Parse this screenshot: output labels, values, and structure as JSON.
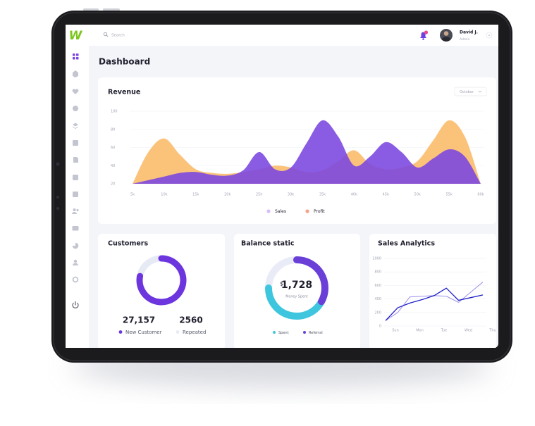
{
  "brand": "W",
  "header": {
    "search": "Search",
    "user_name": "David J.",
    "user_role": "Admin"
  },
  "page_title": "Dashboard",
  "chart_data": [
    {
      "type": "area",
      "title": "Revenue",
      "filter": "October",
      "x": [
        5000,
        7500,
        10000,
        12500,
        15000,
        17500,
        20000,
        22500,
        25000,
        27500,
        30000,
        32500,
        35000,
        37500,
        40000,
        42500,
        45000,
        47500,
        50000,
        52500,
        55000,
        57500,
        60000
      ],
      "xlim": [
        5000,
        60000
      ],
      "xticks": [
        {
          "value": 5000,
          "label": "5k"
        },
        {
          "value": 10000,
          "label": "10k"
        },
        {
          "value": 15000,
          "label": "15k"
        },
        {
          "value": 20000,
          "label": "20k"
        },
        {
          "value": 25000,
          "label": "25k"
        },
        {
          "value": 30000,
          "label": "30k"
        },
        {
          "value": 35000,
          "label": "35k"
        },
        {
          "value": 40000,
          "label": "40k"
        },
        {
          "value": 45000,
          "label": "45k"
        },
        {
          "value": 50000,
          "label": "50k"
        },
        {
          "value": 55000,
          "label": "55k"
        },
        {
          "value": 60000,
          "label": "60k"
        }
      ],
      "ylim": [
        20,
        100
      ],
      "yticks": [
        20,
        40,
        60,
        80,
        100
      ],
      "grid": true,
      "series": [
        {
          "name": "Sales",
          "color": "#7a45e0",
          "legend_color": "#d9bdf7",
          "values": [
            20,
            24,
            28,
            32,
            33,
            30,
            29,
            35,
            55,
            36,
            38,
            65,
            90,
            72,
            40,
            50,
            66,
            55,
            38,
            48,
            58,
            50,
            20
          ]
        },
        {
          "name": "Profit",
          "color": "#fbbd6b",
          "legend_color": "#f6a28a",
          "values": [
            20,
            55,
            70,
            52,
            36,
            32,
            31,
            33,
            36,
            40,
            38,
            33,
            35,
            45,
            57,
            42,
            36,
            38,
            45,
            68,
            90,
            72,
            20
          ]
        }
      ]
    },
    {
      "type": "donut",
      "title": "Customers",
      "categories": [
        "New Customer",
        "Repeated"
      ],
      "values": [
        78,
        22
      ],
      "colors": [
        "#6c35de",
        "#e6eaf5"
      ],
      "totals": [
        "27,157",
        "2560"
      ]
    },
    {
      "type": "donut",
      "title": "Balance static",
      "categories": [
        "Spent",
        "Referral"
      ],
      "values": [
        42,
        33
      ],
      "colors": [
        "#3fc6df",
        "#6a3fd8"
      ],
      "currency": "$",
      "center_value": "1,728",
      "center_label": "Money Spent"
    },
    {
      "type": "line",
      "title": "Sales Analytics",
      "categories": [
        "Sun",
        null,
        "Mon",
        null,
        "Tue",
        null,
        "Wed",
        null,
        "Thu"
      ],
      "ylim": [
        0,
        1000
      ],
      "yticks": [
        0,
        200,
        400,
        600,
        800,
        1000
      ],
      "grid": true,
      "series": [
        {
          "color": "#1d1ec9",
          "values": [
            80,
            270,
            340,
            390,
            450,
            560,
            380,
            420,
            460
          ]
        },
        {
          "color": "#a195ea",
          "values": [
            80,
            200,
            430,
            440,
            450,
            440,
            350,
            500,
            650
          ]
        }
      ]
    }
  ]
}
